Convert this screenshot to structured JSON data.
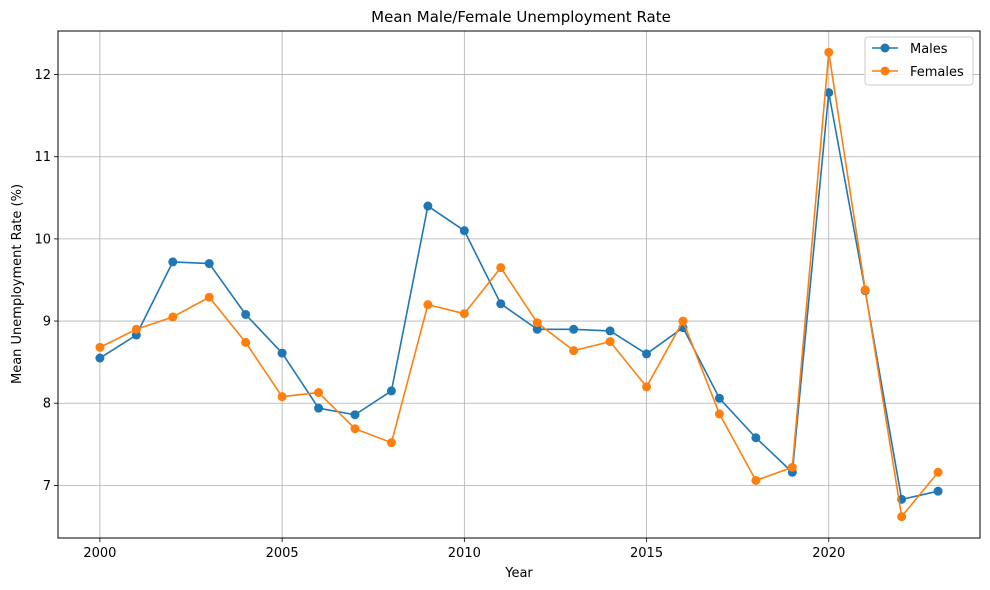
{
  "chart_data": {
    "type": "line",
    "title": "Mean Male/Female Unemployment Rate",
    "xlabel": "Year",
    "ylabel": "Mean Unemployment Rate (%)",
    "x": [
      2000,
      2001,
      2002,
      2003,
      2004,
      2005,
      2006,
      2007,
      2008,
      2009,
      2010,
      2011,
      2012,
      2013,
      2014,
      2015,
      2016,
      2017,
      2018,
      2019,
      2020,
      2021,
      2022,
      2023
    ],
    "xlim": [
      1998.85,
      2024.15
    ],
    "ylim": [
      6.36,
      12.53
    ],
    "xticks": [
      2000,
      2005,
      2010,
      2015,
      2020
    ],
    "xtick_labels": [
      "2000",
      "2005",
      "2010",
      "2015",
      "2020"
    ],
    "yticks": [
      7,
      8,
      9,
      10,
      11,
      12
    ],
    "ytick_labels": [
      "7",
      "8",
      "9",
      "10",
      "11",
      "12"
    ],
    "grid": true,
    "legend_position": "top-right",
    "series": [
      {
        "name": "Males",
        "color": "#1f77b4",
        "marker": "circle",
        "values": [
          8.55,
          8.83,
          9.72,
          9.7,
          9.08,
          8.61,
          7.94,
          7.86,
          8.15,
          10.4,
          10.1,
          9.21,
          8.9,
          8.9,
          8.88,
          8.6,
          8.92,
          8.06,
          7.58,
          7.16,
          11.78,
          9.37,
          6.83,
          6.93
        ]
      },
      {
        "name": "Females",
        "color": "#ff7f0e",
        "marker": "circle",
        "values": [
          8.68,
          8.9,
          9.05,
          9.29,
          8.74,
          8.08,
          8.13,
          7.69,
          7.52,
          9.2,
          9.09,
          9.65,
          8.98,
          8.64,
          8.75,
          8.2,
          9.0,
          7.87,
          7.06,
          7.22,
          12.27,
          9.38,
          6.62,
          7.16
        ]
      }
    ]
  }
}
